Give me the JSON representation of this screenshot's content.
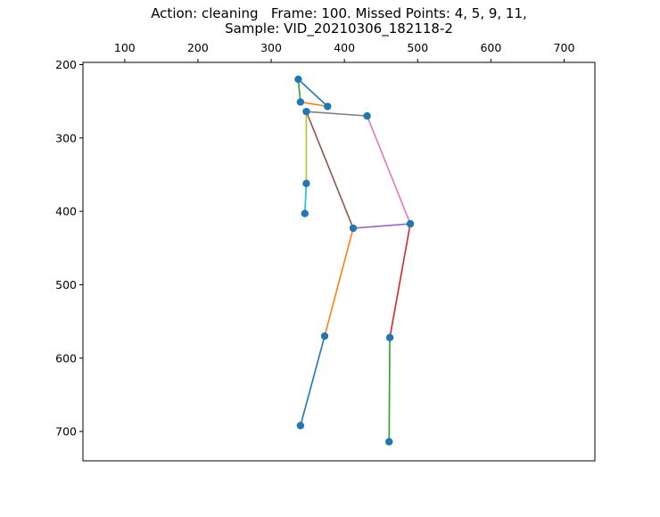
{
  "chart_data": {
    "type": "scatter",
    "title_line1": "Action: cleaning   Frame: 100. Missed Points: 4, 5, 9, 11,",
    "title_line2": "Sample: VID_20210306_182118-2",
    "xlabel": "",
    "ylabel": "",
    "xlim": [
      43,
      742
    ],
    "ylim": [
      740,
      197
    ],
    "y_inverted": true,
    "x_axis_position": "top",
    "grid": false,
    "x_ticks": [
      100,
      200,
      300,
      400,
      500,
      600,
      700
    ],
    "y_ticks": [
      200,
      300,
      400,
      500,
      600,
      700
    ],
    "points": [
      {
        "x": 337,
        "y": 220
      },
      {
        "x": 340,
        "y": 251
      },
      {
        "x": 377,
        "y": 257
      },
      {
        "x": 348,
        "y": 264
      },
      {
        "x": 431,
        "y": 270
      },
      {
        "x": 348,
        "y": 362
      },
      {
        "x": 346,
        "y": 403
      },
      {
        "x": 412,
        "y": 423
      },
      {
        "x": 490,
        "y": 417
      },
      {
        "x": 373,
        "y": 570
      },
      {
        "x": 462,
        "y": 572
      },
      {
        "x": 340,
        "y": 692
      },
      {
        "x": 461,
        "y": 714
      }
    ],
    "marker_color": "#1f77b4",
    "segments": [
      {
        "from": 0,
        "to": 1,
        "color": "#2ca02c"
      },
      {
        "from": 0,
        "to": 2,
        "color": "#1f77b4"
      },
      {
        "from": 1,
        "to": 2,
        "color": "#ff7f0e"
      },
      {
        "from": 3,
        "to": 4,
        "color": "#7f7f7f"
      },
      {
        "from": 3,
        "to": 5,
        "color": "#bcbd22"
      },
      {
        "from": 5,
        "to": 6,
        "color": "#17becf"
      },
      {
        "from": 3,
        "to": 7,
        "color": "#8c564b"
      },
      {
        "from": 4,
        "to": 8,
        "color": "#e377c2"
      },
      {
        "from": 7,
        "to": 8,
        "color": "#9467bd"
      },
      {
        "from": 7,
        "to": 9,
        "color": "#ff7f0e"
      },
      {
        "from": 9,
        "to": 11,
        "color": "#1f77b4"
      },
      {
        "from": 8,
        "to": 10,
        "color": "#d62728"
      },
      {
        "from": 10,
        "to": 12,
        "color": "#2ca02c"
      }
    ]
  }
}
